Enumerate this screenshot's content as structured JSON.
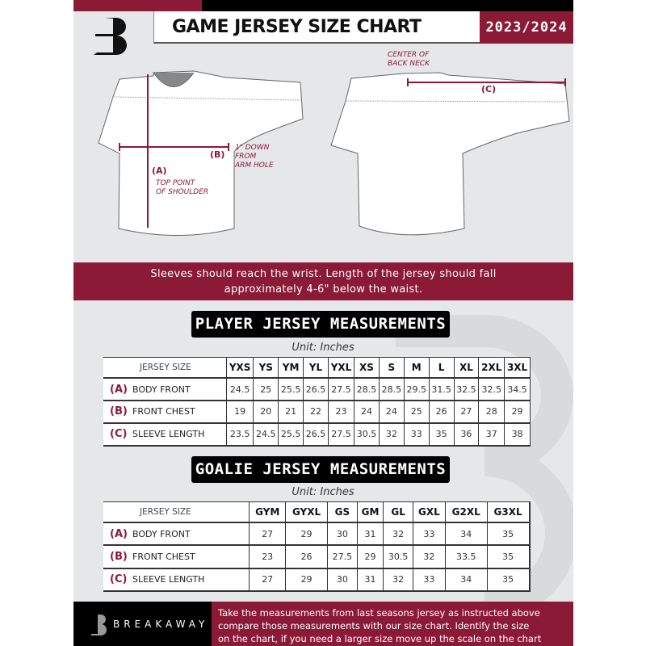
{
  "header": {
    "title": "GAME JERSEY SIZE CHART",
    "season": "2023/2024",
    "logo_letter": "B"
  },
  "diagram": {
    "center_back_neck": [
      "CENTER OF",
      "BACK NECK"
    ],
    "c_label": "(C)",
    "b_label": "(B)",
    "a_label": "(A)",
    "b_note": [
      "1\" DOWN",
      "FROM",
      "ARM HOLE"
    ],
    "a_note": [
      "TOP POINT",
      "OF SHOULDER"
    ]
  },
  "notice": [
    "Sleeves should reach the wrist. Length of the jersey should fall",
    "approximately 4-6\" below the waist."
  ],
  "player": {
    "title": "PLAYER JERSEY MEASUREMENTS",
    "unit": "Unit: Inches",
    "size_label": "JERSEY SIZE",
    "sizes": [
      "YXS",
      "YS",
      "YM",
      "YL",
      "YXL",
      "XS",
      "S",
      "M",
      "L",
      "XL",
      "2XL",
      "3XL"
    ],
    "rows": [
      {
        "letter": "(A)",
        "label": "BODY FRONT",
        "values": [
          "24.5",
          "25",
          "25.5",
          "26.5",
          "27.5",
          "28.5",
          "28.5",
          "29.5",
          "31.5",
          "32.5",
          "32.5",
          "34.5"
        ]
      },
      {
        "letter": "(B)",
        "label": "FRONT CHEST",
        "values": [
          "19",
          "20",
          "21",
          "22",
          "23",
          "24",
          "24",
          "25",
          "26",
          "27",
          "28",
          "29"
        ]
      },
      {
        "letter": "(C)",
        "label": "SLEEVE LENGTH",
        "values": [
          "23.5",
          "24.5",
          "25.5",
          "26.5",
          "27.5",
          "30.5",
          "32",
          "33",
          "35",
          "36",
          "37",
          "38"
        ]
      }
    ]
  },
  "goalie": {
    "title": "GOALIE JERSEY MEASUREMENTS",
    "unit": "Unit: Inches",
    "size_label": "JERSEY SIZE",
    "sizes": [
      "GYM",
      "GYXL",
      "GS",
      "GM",
      "GL",
      "GXL",
      "G2XL",
      "G3XL",
      ""
    ],
    "rows": [
      {
        "letter": "(A)",
        "label": "BODY FRONT",
        "values": [
          "27",
          "29",
          "30",
          "31",
          "32",
          "33",
          "34",
          "35",
          ""
        ]
      },
      {
        "letter": "(B)",
        "label": "FRONT CHEST",
        "values": [
          "23",
          "26",
          "27.5",
          "29",
          "30.5",
          "32",
          "33.5",
          "35",
          ""
        ]
      },
      {
        "letter": "(C)",
        "label": "SLEEVE LENGTH",
        "values": [
          "27",
          "29",
          "30",
          "31",
          "32",
          "33",
          "34",
          "35",
          ""
        ]
      }
    ]
  },
  "footer": {
    "brand": "BREAKAWAY",
    "text": [
      "Take the measurements from last seasons jersey as instructed above",
      "compare those measurements  with our size chart. Identify the size",
      "on the chart, if you need a larger size move up the scale on the chart"
    ]
  },
  "colors": {
    "maroon": "#8b1a36",
    "black": "#000000",
    "background": "#e6e7e9"
  }
}
